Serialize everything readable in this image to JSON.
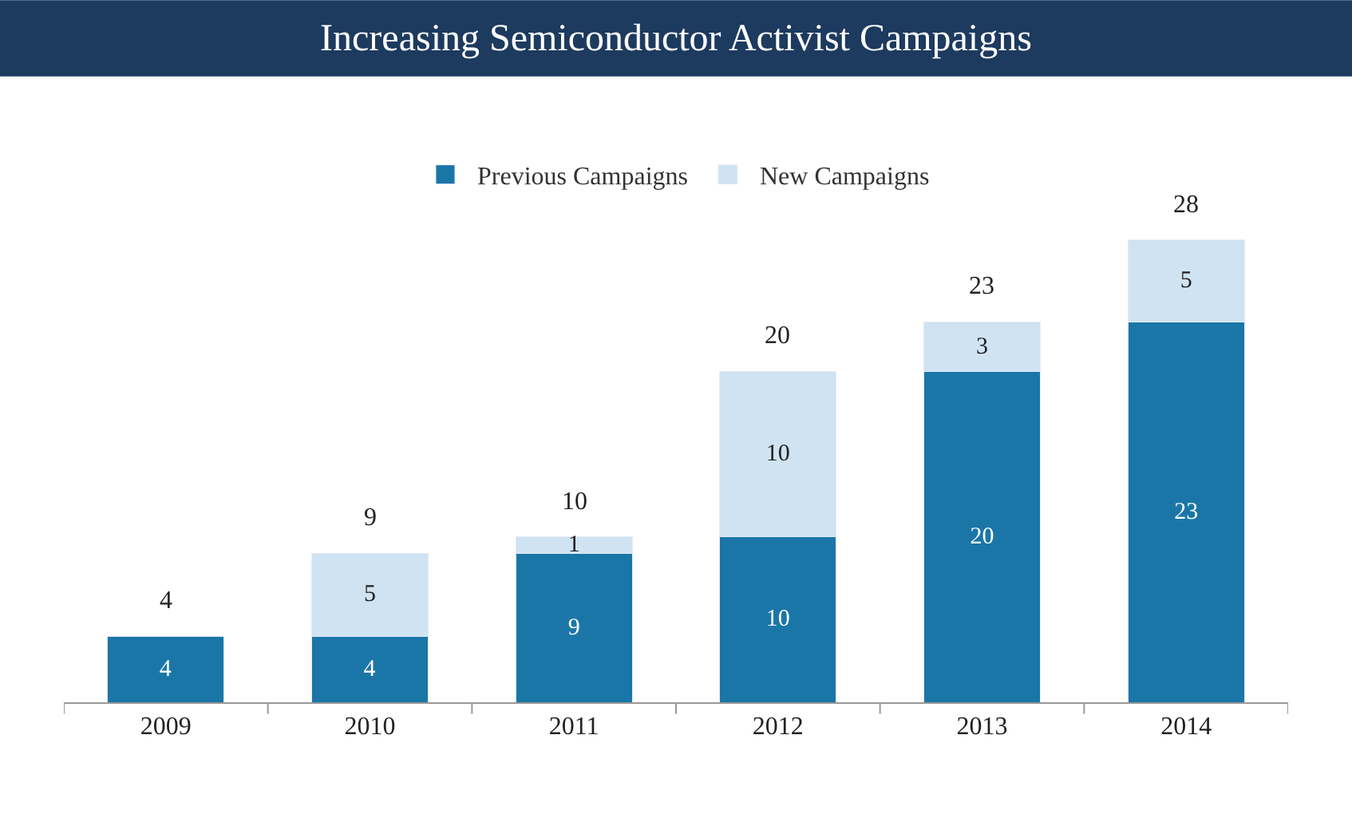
{
  "chart_data": {
    "type": "bar",
    "title": "Increasing Semiconductor Activist Campaigns",
    "categories": [
      "2009",
      "2010",
      "2011",
      "2012",
      "2013",
      "2014"
    ],
    "stacked": true,
    "data_labels": true,
    "series": [
      {
        "name": "Previous Campaigns",
        "color": "#1b76a8",
        "values": [
          4,
          4,
          9,
          10,
          20,
          23
        ]
      },
      {
        "name": "New Campaigns",
        "color": "#cfe3f2",
        "values": [
          null,
          5,
          1,
          10,
          3,
          5
        ]
      }
    ],
    "totals": [
      "4",
      "9",
      "10",
      "20",
      "23",
      "28"
    ],
    "legend": "top"
  }
}
